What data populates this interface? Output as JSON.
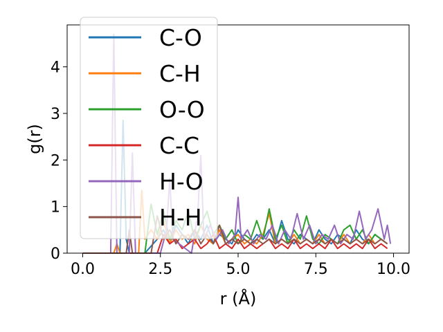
{
  "chart_data": {
    "type": "line",
    "title": "",
    "xlabel": "r (Å)",
    "ylabel": "g(r)",
    "xlim": [
      -0.5,
      10.5
    ],
    "ylim": [
      0,
      4.9
    ],
    "xticks": [
      0.0,
      2.5,
      5.0,
      7.5,
      10.0
    ],
    "xtick_labels": [
      "0.0",
      "2.5",
      "5.0",
      "7.5",
      "10.0"
    ],
    "yticks": [
      0,
      1,
      2,
      3,
      4
    ],
    "ytick_labels": [
      "0",
      "1",
      "2",
      "3",
      "4"
    ],
    "grid": false,
    "legend_position": "top-left",
    "series": [
      {
        "name": "C-O",
        "color": "#1f77b4",
        "x": [
          0,
          1.2,
          1.3,
          1.4,
          1.5,
          2.0,
          2.4,
          2.6,
          2.8,
          3.0,
          3.2,
          3.4,
          3.6,
          3.8,
          4.0,
          4.2,
          4.4,
          4.6,
          4.8,
          5.0,
          5.2,
          5.4,
          5.6,
          5.8,
          6.0,
          6.2,
          6.4,
          6.6,
          6.8,
          7.0,
          7.2,
          7.4,
          7.6,
          7.8,
          8.0,
          8.2,
          8.4,
          8.6,
          8.8,
          9.0,
          9.2,
          9.4,
          9.6,
          9.8
        ],
        "y": [
          0,
          0,
          2.85,
          0.3,
          0,
          0,
          0.3,
          0.5,
          0.2,
          0.6,
          0.4,
          0.2,
          0.5,
          0.3,
          0.6,
          0.2,
          0.4,
          0.3,
          0.2,
          0.5,
          0.3,
          0.2,
          0.4,
          0.3,
          0.5,
          0.2,
          0.7,
          0.3,
          0.2,
          0.4,
          0.3,
          0.2,
          0.5,
          0.3,
          0.2,
          0.4,
          0.3,
          0.2,
          0.5,
          0.3,
          0.2,
          0.4,
          0.3,
          0.2
        ]
      },
      {
        "name": "C-H",
        "color": "#ff7f0e",
        "x": [
          0,
          1.0,
          1.1,
          1.2,
          1.8,
          1.9,
          2.0,
          2.2,
          2.4,
          2.6,
          2.8,
          3.0,
          3.2,
          3.4,
          3.6,
          3.8,
          4.0,
          4.2,
          4.4,
          4.6,
          4.8,
          5.0,
          5.2,
          5.4,
          5.6,
          5.8,
          6.0,
          6.2,
          6.4,
          6.6,
          6.8,
          7.0,
          7.2,
          7.4,
          7.6,
          7.8,
          8.0,
          8.2,
          8.4,
          8.6,
          8.8,
          9.0,
          9.2,
          9.4,
          9.6,
          9.8
        ],
        "y": [
          0,
          0,
          0.2,
          0,
          0,
          1.35,
          0.3,
          0.5,
          0.3,
          0.7,
          0.2,
          0.5,
          0.3,
          0.4,
          0.2,
          0.6,
          0.3,
          0.2,
          0.5,
          0.2,
          0.3,
          0.4,
          0.2,
          0.3,
          0.2,
          0.4,
          0.85,
          0.2,
          0.3,
          0.2,
          0.4,
          0.2,
          0.3,
          0.2,
          0.4,
          0.2,
          0.3,
          0.2,
          0.4,
          0.2,
          0.3,
          0.2,
          0.4,
          0.2,
          0.3,
          0.2
        ]
      },
      {
        "name": "O-O",
        "color": "#2ca02c",
        "x": [
          0,
          2.0,
          2.2,
          2.4,
          2.6,
          2.8,
          3.0,
          3.2,
          3.4,
          3.6,
          3.8,
          4.0,
          4.2,
          4.4,
          4.6,
          4.8,
          5.0,
          5.2,
          5.4,
          5.6,
          5.8,
          6.0,
          6.2,
          6.4,
          6.6,
          6.8,
          7.0,
          7.2,
          7.4,
          7.6,
          7.8,
          8.0,
          8.2,
          8.4,
          8.6,
          8.8,
          9.0,
          9.2,
          9.4,
          9.6,
          9.8
        ],
        "y": [
          0,
          0,
          1.05,
          0.4,
          0.9,
          0.3,
          0.7,
          0.5,
          0.9,
          0.3,
          0.6,
          0.9,
          0.4,
          0.6,
          0.3,
          0.5,
          0.2,
          0.4,
          0.3,
          0.7,
          0.3,
          0.95,
          0.3,
          0.6,
          0.2,
          0.5,
          0.3,
          0.8,
          0.3,
          0.2,
          0.4,
          0.3,
          0.2,
          0.5,
          0.6,
          0.3,
          0.5,
          0.2,
          0.4,
          0.3,
          0.2
        ]
      },
      {
        "name": "C-C",
        "color": "#d62728",
        "x": [
          0,
          2.4,
          2.6,
          2.8,
          3.0,
          3.2,
          3.4,
          3.6,
          3.8,
          4.0,
          4.2,
          4.4,
          4.6,
          4.8,
          5.0,
          5.2,
          5.4,
          5.6,
          5.8,
          6.0,
          6.2,
          6.4,
          6.6,
          6.8,
          7.0,
          7.2,
          7.4,
          7.6,
          7.8,
          8.0,
          8.2,
          8.4,
          8.6,
          8.8,
          9.0,
          9.2,
          9.4,
          9.6,
          9.8
        ],
        "y": [
          0,
          0,
          0.4,
          0.2,
          0.3,
          0.1,
          0.2,
          0.3,
          0.1,
          0.2,
          0.4,
          0.1,
          0.2,
          0.1,
          0.3,
          0.1,
          0.2,
          0.1,
          0.2,
          0.3,
          0.1,
          0.2,
          0.1,
          0.3,
          0.1,
          0.2,
          0.1,
          0.2,
          0.1,
          0.3,
          0.1,
          0.2,
          0.1,
          0.2,
          0.1,
          0.3,
          0.1,
          0.2,
          0.1
        ]
      },
      {
        "name": "H-O",
        "color": "#9467bd",
        "x": [
          0,
          0.9,
          1.0,
          1.1,
          1.5,
          1.6,
          1.7,
          2.5,
          2.7,
          2.8,
          2.9,
          3.5,
          3.7,
          3.8,
          3.9,
          4.1,
          4.3,
          4.5,
          4.7,
          4.9,
          5.0,
          5.1,
          5.3,
          5.5,
          5.7,
          5.9,
          6.1,
          6.3,
          6.5,
          6.7,
          6.9,
          7.1,
          7.3,
          7.5,
          7.7,
          7.9,
          8.1,
          8.3,
          8.5,
          8.7,
          8.9,
          9.1,
          9.3,
          9.5,
          9.7,
          9.8,
          9.9
        ],
        "y": [
          0,
          0,
          4.7,
          0,
          0,
          2.15,
          0,
          0,
          0.5,
          1.6,
          0.3,
          0,
          0.8,
          2.1,
          0.3,
          0.6,
          0.3,
          0.5,
          0.2,
          0.4,
          1.2,
          0.3,
          0.5,
          0.2,
          0.4,
          0.3,
          0.6,
          0.2,
          0.5,
          0.3,
          0.85,
          0.3,
          0.6,
          0.2,
          0.4,
          0.3,
          0.6,
          0.2,
          0.4,
          0.3,
          0.9,
          0.3,
          0.5,
          0.95,
          0.3,
          0.6,
          0.2
        ]
      },
      {
        "name": "H-H",
        "color": "#8c564b",
        "x": [
          0,
          1.4,
          1.5,
          1.6,
          2.2,
          2.4,
          2.6,
          2.8,
          3.0,
          3.2,
          3.4,
          3.6,
          3.8,
          4.0,
          4.2,
          4.4,
          4.6,
          4.8,
          5.0,
          5.2,
          5.4,
          5.6,
          5.8,
          6.0,
          6.2,
          6.4,
          6.6,
          6.8,
          7.0,
          7.2,
          7.4,
          7.6,
          7.8,
          8.0,
          8.2,
          8.4,
          8.6,
          8.8,
          9.0,
          9.2,
          9.4,
          9.6,
          9.8
        ],
        "y": [
          0,
          0,
          0.5,
          0,
          0,
          0.8,
          0.3,
          0.5,
          0.2,
          0.4,
          0.3,
          0.5,
          0.2,
          0.4,
          0.2,
          0.6,
          0.2,
          0.3,
          0.2,
          0.3,
          0.2,
          0.3,
          0.2,
          0.3,
          0.2,
          0.3,
          0.2,
          0.3,
          0.2,
          0.3,
          0.2,
          0.3,
          0.2,
          0.3,
          0.2,
          0.3,
          0.2,
          0.3,
          0.2,
          0.3,
          0.2,
          0.3,
          0.2
        ]
      }
    ]
  }
}
